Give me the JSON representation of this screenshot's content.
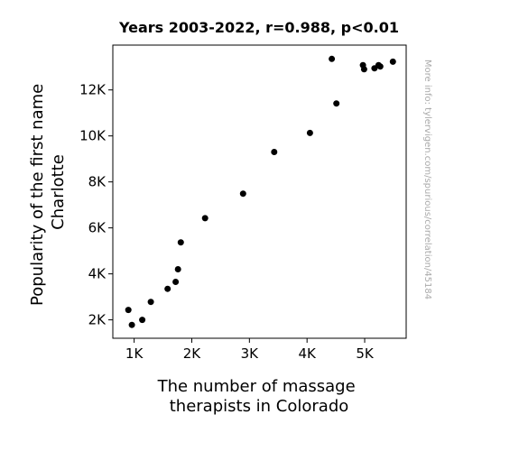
{
  "chart_data": {
    "type": "scatter",
    "title": "Years 2003-2022, r=0.988, p<0.01",
    "xlabel": [
      "The number of massage",
      "therapists in Colorado"
    ],
    "ylabel": [
      "Popularity of the first name",
      "Charlotte"
    ],
    "xlim": [
      630,
      5720
    ],
    "ylim": [
      1200,
      13950
    ],
    "xticks": [
      {
        "value": 1000,
        "label": "1K"
      },
      {
        "value": 2000,
        "label": "2K"
      },
      {
        "value": 3000,
        "label": "3K"
      },
      {
        "value": 4000,
        "label": "4K"
      },
      {
        "value": 5000,
        "label": "5K"
      }
    ],
    "yticks": [
      {
        "value": 2000,
        "label": "2K"
      },
      {
        "value": 4000,
        "label": "4K"
      },
      {
        "value": 6000,
        "label": "6K"
      },
      {
        "value": 8000,
        "label": "8K"
      },
      {
        "value": 10000,
        "label": "10K"
      },
      {
        "value": 12000,
        "label": "12K"
      }
    ],
    "grid": false,
    "marker_color": "#000000",
    "points": [
      {
        "x": 900,
        "y": 2430
      },
      {
        "x": 960,
        "y": 1780
      },
      {
        "x": 1140,
        "y": 2000
      },
      {
        "x": 1290,
        "y": 2780
      },
      {
        "x": 1580,
        "y": 3350
      },
      {
        "x": 1720,
        "y": 3650
      },
      {
        "x": 1760,
        "y": 4200
      },
      {
        "x": 1810,
        "y": 5370
      },
      {
        "x": 2230,
        "y": 6420
      },
      {
        "x": 2890,
        "y": 7490
      },
      {
        "x": 3430,
        "y": 9300
      },
      {
        "x": 4050,
        "y": 10130
      },
      {
        "x": 4430,
        "y": 13350
      },
      {
        "x": 4510,
        "y": 11410
      },
      {
        "x": 4970,
        "y": 13080
      },
      {
        "x": 4990,
        "y": 12900
      },
      {
        "x": 5170,
        "y": 12940
      },
      {
        "x": 5240,
        "y": 13080
      },
      {
        "x": 5270,
        "y": 13020
      },
      {
        "x": 5490,
        "y": 13230
      }
    ]
  },
  "side_note": "More info: tylervigen.com/spurious/correlation/45184"
}
